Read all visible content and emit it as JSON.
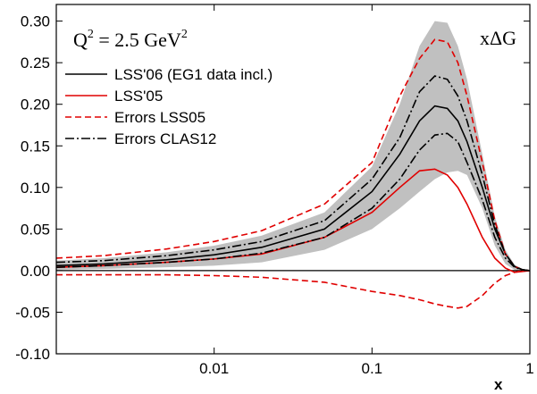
{
  "chart_data": {
    "type": "line",
    "annotation_q2": {
      "base": "Q",
      "sup": "2",
      "rest": " = 2.5 GeV",
      "sup2": "2"
    },
    "annotation_corner": "xΔG",
    "xlabel": "x",
    "xlog": true,
    "xlim": [
      0.001,
      1
    ],
    "xticks": [
      0.01,
      0.1,
      1
    ],
    "ylim": [
      -0.1,
      0.32
    ],
    "yticks": [
      {
        "value": -0.1,
        "label": "-0.10"
      },
      {
        "value": -0.05,
        "label": "-0.05"
      },
      {
        "value": 0,
        "label": "0.00"
      },
      {
        "value": 0.05,
        "label": "0.05"
      },
      {
        "value": 0.1,
        "label": "0.10"
      },
      {
        "value": 0.15,
        "label": "0.15"
      },
      {
        "value": 0.2,
        "label": "0.20"
      },
      {
        "value": 0.25,
        "label": "0.25"
      },
      {
        "value": 0.3,
        "label": "0.30"
      }
    ],
    "hline": 0,
    "legend": "upper left",
    "x": [
      0.001,
      0.002,
      0.005,
      0.01,
      0.02,
      0.05,
      0.1,
      0.15,
      0.2,
      0.25,
      0.3,
      0.35,
      0.4,
      0.5,
      0.6,
      0.7,
      0.8,
      0.9,
      1.0
    ],
    "band": {
      "color": "#c0c0c0",
      "upper": [
        0.012,
        0.015,
        0.022,
        0.03,
        0.042,
        0.07,
        0.125,
        0.2,
        0.27,
        0.3,
        0.298,
        0.27,
        0.23,
        0.14,
        0.065,
        0.025,
        0.007,
        0.002,
        0
      ],
      "lower": [
        0.001,
        0.002,
        0.004,
        0.006,
        0.01,
        0.025,
        0.05,
        0.075,
        0.095,
        0.11,
        0.118,
        0.12,
        0.115,
        0.075,
        0.03,
        0.008,
        0.001,
        0,
        0
      ]
    },
    "series": [
      {
        "name": "LSS'06 (EG1 data incl.)",
        "color": "#000000",
        "dash": "solid",
        "values": [
          0.006,
          0.008,
          0.013,
          0.019,
          0.028,
          0.05,
          0.095,
          0.14,
          0.18,
          0.198,
          0.195,
          0.18,
          0.155,
          0.1,
          0.05,
          0.02,
          0.005,
          0.001,
          0
        ]
      },
      {
        "name": "LSS'05",
        "color": "#e00000",
        "dash": "solid",
        "values": [
          0.004,
          0.006,
          0.01,
          0.014,
          0.02,
          0.04,
          0.07,
          0.1,
          0.12,
          0.122,
          0.115,
          0.1,
          0.08,
          0.04,
          0.015,
          0.003,
          -0.002,
          -0.001,
          0
        ]
      },
      {
        "name": "Errors LSS05",
        "color": "#e00000",
        "dash": "dashed",
        "values": [
          0.015,
          0.018,
          0.026,
          0.035,
          0.048,
          0.08,
          0.13,
          0.21,
          0.255,
          0.278,
          0.275,
          0.25,
          0.21,
          0.13,
          0.06,
          0.02,
          0.005,
          0.001,
          0
        ]
      },
      {
        "name": null,
        "color": "#e00000",
        "dash": "dashed",
        "values": [
          -0.005,
          -0.005,
          -0.005,
          -0.006,
          -0.008,
          -0.014,
          -0.025,
          -0.03,
          -0.035,
          -0.04,
          -0.043,
          -0.045,
          -0.043,
          -0.03,
          -0.015,
          -0.006,
          -0.002,
          0,
          0
        ]
      },
      {
        "name": "Errors CLAS12",
        "color": "#000000",
        "dash": "dashdot",
        "values": [
          0.01,
          0.012,
          0.018,
          0.025,
          0.035,
          0.06,
          0.11,
          0.16,
          0.215,
          0.234,
          0.23,
          0.21,
          0.18,
          0.115,
          0.055,
          0.02,
          0.005,
          0.001,
          0
        ]
      },
      {
        "name": null,
        "color": "#000000",
        "dash": "dashdot",
        "values": [
          0.004,
          0.006,
          0.01,
          0.014,
          0.021,
          0.04,
          0.075,
          0.11,
          0.145,
          0.163,
          0.165,
          0.155,
          0.13,
          0.085,
          0.04,
          0.015,
          0.004,
          0.001,
          0
        ]
      }
    ]
  }
}
